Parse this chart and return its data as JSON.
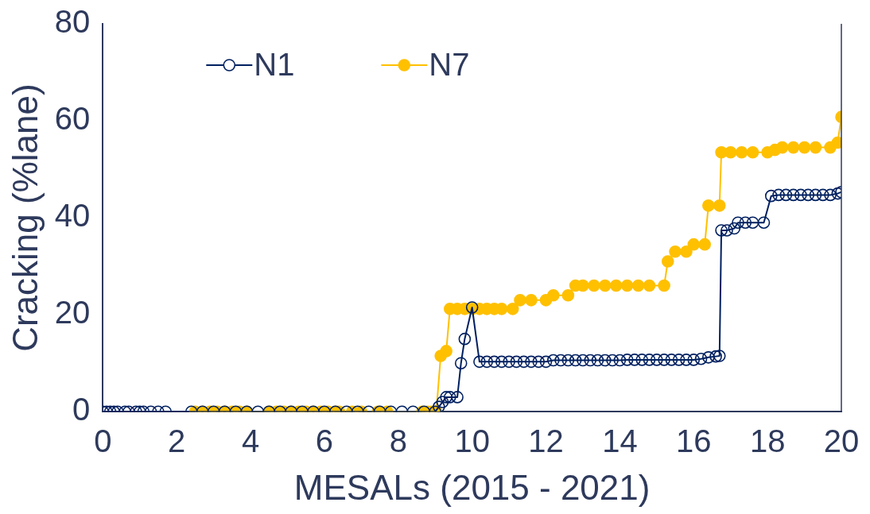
{
  "chart_data": {
    "type": "line",
    "xlabel": "MESALs (2015 - 2021)",
    "ylabel": "Cracking (%lane)",
    "xlim": [
      0,
      20
    ],
    "xticks": [
      0,
      2,
      4,
      6,
      8,
      10,
      12,
      14,
      16,
      18,
      20
    ],
    "ylim": [
      0,
      80
    ],
    "yticks": [
      0,
      20,
      40,
      60,
      80
    ],
    "grid": false,
    "legend": "top left",
    "marker": "circle",
    "line_style": "solid",
    "series": [
      {
        "name": "N1",
        "color": "#002060",
        "x": [
          0,
          0.1,
          0.2,
          0.3,
          0.4,
          0.6,
          0.7,
          0.9,
          1.0,
          1.1,
          1.3,
          1.5,
          1.7,
          2.4,
          2.7,
          3.0,
          3.3,
          3.6,
          3.9,
          4.2,
          4.5,
          4.8,
          5.1,
          5.4,
          5.7,
          6.0,
          6.3,
          6.6,
          6.9,
          7.2,
          7.5,
          7.8,
          8.1,
          8.4,
          8.7,
          9.0,
          9.1,
          9.2,
          9.3,
          9.4,
          9.6,
          9.7,
          9.8,
          10.0,
          10.2,
          10.4,
          10.6,
          10.8,
          11.0,
          11.2,
          11.4,
          11.6,
          11.8,
          12.0,
          12.2,
          12.4,
          12.6,
          12.8,
          13.0,
          13.2,
          13.4,
          13.6,
          13.8,
          14.0,
          14.2,
          14.4,
          14.6,
          14.8,
          15.0,
          15.2,
          15.4,
          15.6,
          15.8,
          16.0,
          16.2,
          16.4,
          16.6,
          16.7,
          16.75,
          16.9,
          17.1,
          17.2,
          17.4,
          17.6,
          17.9,
          18.1,
          18.3,
          18.5,
          18.7,
          18.9,
          19.1,
          19.3,
          19.5,
          19.7,
          19.9,
          20.0
        ],
        "values": [
          0,
          0,
          0,
          0,
          0,
          0,
          0,
          0,
          0,
          0,
          0,
          0,
          0,
          0,
          0,
          0,
          0,
          0,
          0,
          0,
          0,
          0,
          0,
          0,
          0,
          0,
          0,
          0,
          0,
          0,
          0,
          0,
          0,
          0,
          0,
          0,
          1,
          2,
          3,
          3,
          3,
          10,
          15,
          21.5,
          10.3,
          10.3,
          10.3,
          10.3,
          10.3,
          10.3,
          10.3,
          10.3,
          10.3,
          10.3,
          10.6,
          10.6,
          10.6,
          10.6,
          10.6,
          10.6,
          10.6,
          10.6,
          10.6,
          10.6,
          10.7,
          10.7,
          10.7,
          10.7,
          10.7,
          10.7,
          10.7,
          10.7,
          10.7,
          10.7,
          10.9,
          11.2,
          11.4,
          11.5,
          37.4,
          37.4,
          37.8,
          39,
          39,
          39,
          39,
          44.5,
          44.7,
          44.7,
          44.7,
          44.7,
          44.7,
          44.7,
          44.7,
          44.7,
          45,
          45.3
        ]
      },
      {
        "name": "N7",
        "color": "#ffc000",
        "x": [
          2.5,
          2.7,
          2.9,
          3.1,
          3.3,
          3.5,
          3.7,
          3.9,
          4.5,
          4.7,
          4.9,
          5.1,
          5.3,
          5.5,
          5.7,
          5.9,
          6.1,
          6.3,
          6.4,
          6.75,
          7.0,
          7.45,
          7.7,
          8.65,
          8.8,
          8.9,
          9.03,
          9.15,
          9.3,
          9.4,
          9.6,
          9.8,
          10.0,
          10.2,
          10.4,
          10.6,
          10.8,
          11.1,
          11.3,
          11.6,
          12.0,
          12.2,
          12.6,
          12.8,
          13.0,
          13.3,
          13.6,
          13.9,
          14.2,
          14.5,
          14.8,
          15.2,
          15.3,
          15.5,
          15.8,
          16.0,
          16.3,
          16.4,
          16.7,
          16.75,
          17.0,
          17.3,
          17.6,
          18.0,
          18.2,
          18.4,
          18.7,
          19.0,
          19.3,
          19.7,
          19.9,
          20.0
        ],
        "values": [
          0,
          0,
          0,
          0,
          0,
          0,
          0,
          0,
          0,
          0,
          0,
          0,
          0,
          0,
          0,
          0,
          0,
          0,
          0,
          0,
          0,
          0,
          0,
          0,
          0,
          0,
          0,
          11.5,
          12.5,
          21.2,
          21.2,
          21.2,
          21.2,
          21.2,
          21.2,
          21.2,
          21.2,
          21.2,
          23,
          23,
          23,
          24,
          24,
          26,
          26,
          26,
          26,
          26,
          26,
          26,
          26,
          26,
          31,
          33,
          33,
          34.5,
          34.5,
          42.5,
          42.5,
          53.5,
          53.5,
          53.5,
          53.5,
          53.5,
          54,
          54.5,
          54.5,
          54.5,
          54.5,
          54.5,
          55.5,
          60.8
        ]
      }
    ]
  }
}
